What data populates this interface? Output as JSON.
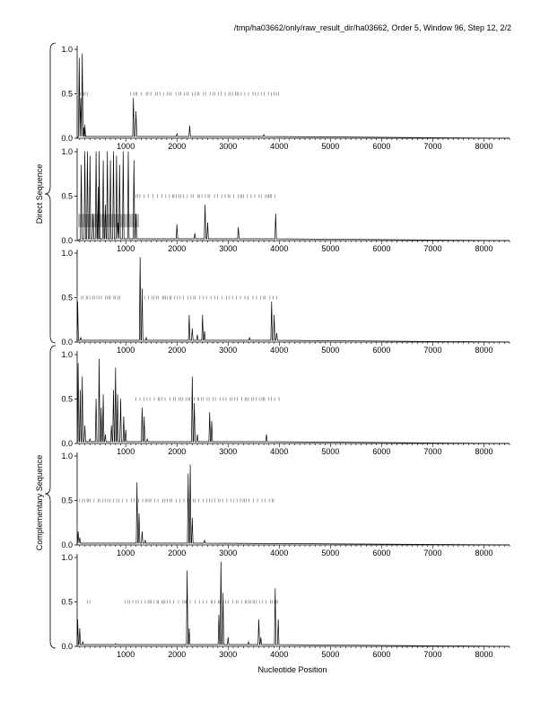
{
  "header": "/tmp/ha03662/only/raw_result_dir/ha03662, Order 5, Window 96, Step 12, 2/2",
  "group_labels": [
    "Direct Sequence",
    "Complementary Sequence"
  ],
  "xlabel": "Nucleotide Position",
  "chart_data": {
    "type": "line",
    "xlim": [
      50,
      8500
    ],
    "ylim": [
      0,
      1
    ],
    "x_ticks": [
      "1000",
      "2000",
      "3000",
      "4000",
      "5000",
      "6000",
      "7000",
      "8000"
    ],
    "y_ticks": [
      "0.0",
      "0.5",
      "1.0"
    ],
    "panels": [
      {
        "group": "Direct Sequence",
        "peaks": [
          [
            90,
            0.9
          ],
          [
            120,
            0.45
          ],
          [
            150,
            0.95
          ],
          [
            180,
            0.12
          ],
          [
            200,
            0.15
          ],
          [
            1150,
            0.45
          ],
          [
            1200,
            0.3
          ],
          [
            2000,
            0.05
          ],
          [
            2250,
            0.14
          ],
          [
            3700,
            0.04
          ]
        ],
        "markers_x": [
          50,
          4000,
          0.5
        ],
        "markers_gap": [
          250,
          1050
        ],
        "highlight": null
      },
      {
        "group": "Direct Sequence",
        "peaks": [
          [
            130,
            0.85
          ],
          [
            200,
            1
          ],
          [
            250,
            1
          ],
          [
            300,
            0.95
          ],
          [
            360,
            0.3
          ],
          [
            420,
            1
          ],
          [
            460,
            0.6
          ],
          [
            480,
            1
          ],
          [
            560,
            0.9
          ],
          [
            600,
            0.4
          ],
          [
            640,
            1
          ],
          [
            700,
            0.9
          ],
          [
            760,
            1
          ],
          [
            820,
            0.95
          ],
          [
            850,
            0.2
          ],
          [
            880,
            0.85
          ],
          [
            950,
            1
          ],
          [
            1050,
            1
          ],
          [
            1160,
            0.9
          ],
          [
            1200,
            0.3
          ],
          [
            2000,
            0.18
          ],
          [
            2350,
            0.08
          ],
          [
            2550,
            0.4
          ],
          [
            2600,
            0.2
          ],
          [
            3200,
            0.15
          ],
          [
            3930,
            0.3
          ]
        ],
        "markers_x": [
          1200,
          3950,
          0.5
        ],
        "markers_gap": [
          50,
          1150
        ],
        "highlight": [
          50,
          1260,
          0.15,
          0.3
        ]
      },
      {
        "group": "Direct Sequence",
        "peaks": [
          [
            60,
            0.45
          ],
          [
            120,
            0.05
          ],
          [
            1280,
            0.95
          ],
          [
            1320,
            0.6
          ],
          [
            1400,
            0.05
          ],
          [
            2240,
            0.3
          ],
          [
            2300,
            0.15
          ],
          [
            2400,
            0.08
          ],
          [
            2500,
            0.3
          ],
          [
            2540,
            0.12
          ],
          [
            3420,
            0.05
          ],
          [
            3850,
            0.45
          ],
          [
            3900,
            0.3
          ],
          [
            3950,
            0.1
          ]
        ],
        "markers_x": [
          50,
          4000,
          0.5
        ],
        "markers_gap": [
          900,
          1250
        ],
        "highlight": null
      },
      {
        "group": "Complementary Sequence",
        "peaks": [
          [
            70,
            0.9
          ],
          [
            110,
            0.6
          ],
          [
            150,
            0.75
          ],
          [
            200,
            0.2
          ],
          [
            300,
            0.05
          ],
          [
            420,
            0.5
          ],
          [
            480,
            0.95
          ],
          [
            520,
            0.4
          ],
          [
            560,
            0.55
          ],
          [
            600,
            0.1
          ],
          [
            720,
            0.2
          ],
          [
            760,
            0.6
          ],
          [
            800,
            0.85
          ],
          [
            840,
            0.55
          ],
          [
            900,
            0.5
          ],
          [
            960,
            0.3
          ],
          [
            1000,
            0.15
          ],
          [
            1320,
            0.4
          ],
          [
            1360,
            0.3
          ],
          [
            1420,
            0.05
          ],
          [
            2300,
            0.75
          ],
          [
            2340,
            0.45
          ],
          [
            2400,
            0.1
          ],
          [
            2640,
            0.35
          ],
          [
            2680,
            0.25
          ],
          [
            3750,
            0.1
          ]
        ],
        "markers_x": [
          1200,
          4000,
          0.5
        ],
        "markers_gap": [
          50,
          1150
        ],
        "highlight": null
      },
      {
        "group": "Complementary Sequence",
        "peaks": [
          [
            70,
            0.15
          ],
          [
            100,
            0.08
          ],
          [
            150,
            0.02
          ],
          [
            1220,
            0.7
          ],
          [
            1260,
            0.35
          ],
          [
            1320,
            0.15
          ],
          [
            1380,
            0.05
          ],
          [
            2220,
            0.8
          ],
          [
            2260,
            0.9
          ],
          [
            2300,
            0.3
          ],
          [
            2540,
            0.05
          ]
        ],
        "markers_x": [
          100,
          3950,
          0.5
        ],
        "markers_gap": [
          -1,
          -1
        ],
        "highlight": null
      },
      {
        "group": "Complementary Sequence",
        "peaks": [
          [
            60,
            0.3
          ],
          [
            100,
            0.2
          ],
          [
            160,
            0.05
          ],
          [
            800,
            0.03
          ],
          [
            2200,
            0.85
          ],
          [
            2240,
            0.2
          ],
          [
            2820,
            0.35
          ],
          [
            2860,
            0.95
          ],
          [
            2900,
            0.6
          ],
          [
            3000,
            0.1
          ],
          [
            3400,
            0.05
          ],
          [
            3600,
            0.3
          ],
          [
            3640,
            0.1
          ],
          [
            3920,
            0.65
          ],
          [
            3980,
            0.3
          ]
        ],
        "markers_x": [
          250,
          4000,
          0.5
        ],
        "markers_gap": [
          300,
          950
        ],
        "highlight": null
      }
    ]
  }
}
